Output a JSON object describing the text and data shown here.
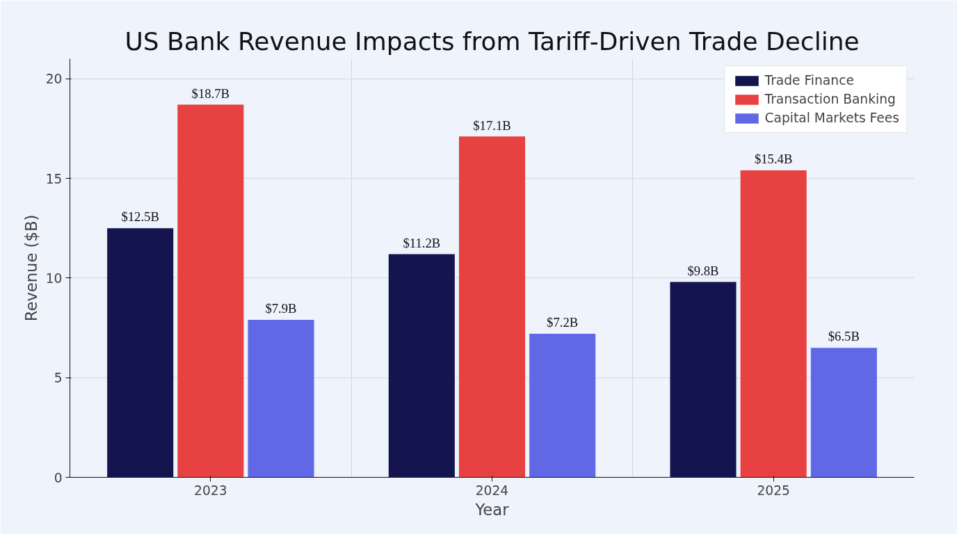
{
  "chart_data": {
    "type": "bar",
    "title": "US Bank Revenue Impacts from Tariff-Driven Trade Decline",
    "xlabel": "Year",
    "ylabel": "Revenue ($B)",
    "categories": [
      "2023",
      "2024",
      "2025"
    ],
    "series": [
      {
        "name": "Trade Finance",
        "color": "#14154f",
        "values": [
          12.5,
          11.2,
          9.8
        ],
        "value_labels": [
          "$12.5B",
          "$11.2B",
          "$9.8B"
        ]
      },
      {
        "name": "Transaction Banking",
        "color": "#e84142",
        "values": [
          18.7,
          17.1,
          15.4
        ],
        "value_labels": [
          "$18.7B",
          "$17.1B",
          "$15.4B"
        ]
      },
      {
        "name": "Capital Markets Fees",
        "color": "#6068e6",
        "values": [
          7.9,
          7.2,
          6.5
        ],
        "value_labels": [
          "$7.9B",
          "$7.2B",
          "$6.5B"
        ]
      }
    ],
    "ylim": [
      0,
      21
    ],
    "yticks": [
      0,
      5,
      10,
      15,
      20
    ],
    "grid": true,
    "legend": "top right"
  }
}
